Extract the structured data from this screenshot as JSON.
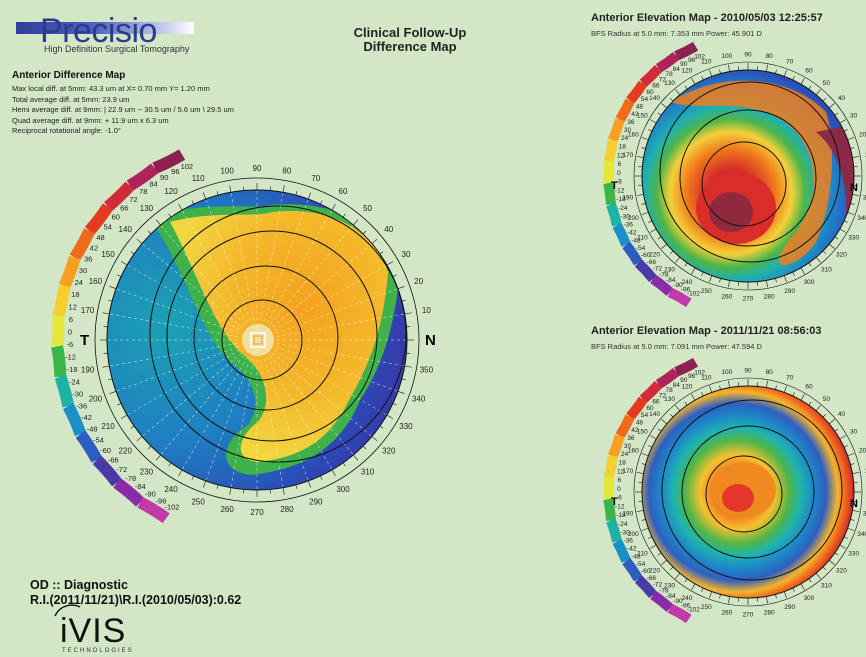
{
  "branding": {
    "product_name": "Precisio",
    "product_subtitle": "High Definition Surgical Tomography",
    "company_logo": "iVIS",
    "company_subtitle": "TECHNOLOGIES"
  },
  "report": {
    "title_line1": "Clinical Follow-Up",
    "title_line2": "Difference Map"
  },
  "difference_map": {
    "title": "Anterior Difference Map",
    "stats": [
      "Max local diff. at 5mm: 43.3 um at X= 0.70 mm Y= 1.20 mm",
      "Total average diff. at 5mm: 23.9 um",
      "Hemi average diff. at 9mm: | 22.9 um  -- 30.5 um  / 5.6 um  \\ 29.5 um",
      "Quad average diff. at 9mm: + 11.9 um  x 6.3 um",
      "Reciprocal rotational angle: -1.0°"
    ],
    "label_temporal": "T",
    "label_nasal": "N",
    "scale_labels": [
      "102",
      "96",
      "90",
      "84",
      "78",
      "72",
      "66",
      "60",
      "54",
      "48",
      "42",
      "36",
      "30",
      "24",
      "18",
      "12",
      "6",
      "0",
      "-6",
      "-12",
      "-18",
      "-24",
      "-30",
      "-36",
      "-42",
      "-48",
      "-54",
      "-60",
      "-66",
      "-72",
      "-78",
      "-84",
      "-90",
      "-96",
      "-102"
    ],
    "angle_labels": [
      "0",
      "10",
      "20",
      "30",
      "40",
      "50",
      "60",
      "70",
      "80",
      "90",
      "100",
      "110",
      "120",
      "130",
      "140",
      "150",
      "160",
      "170",
      "180",
      "190",
      "200",
      "210",
      "220",
      "230",
      "240",
      "250",
      "260",
      "270",
      "280",
      "290",
      "300",
      "310",
      "320",
      "330",
      "340",
      "350"
    ],
    "scale_colors": [
      "#8b2252",
      "#b0235a",
      "#d12a3a",
      "#e43a22",
      "#f06a1c",
      "#f5a020",
      "#f5cf2e",
      "#e5e83a",
      "#3bb54a",
      "#1cb3a6",
      "#1b8fc8",
      "#2d5dbf",
      "#4a3aa8",
      "#8a2ca8",
      "#c23aa8"
    ]
  },
  "elevation_map_1": {
    "title": "Anterior Elevation Map - 2010/05/03 12:25:57",
    "subtitle": "BFS Radius at 5.0 mm: 7.353 mm  Power: 45.901 D",
    "label_temporal": "T",
    "label_nasal": "N"
  },
  "elevation_map_2": {
    "title": "Anterior Elevation Map - 2011/11/21 08:56:03",
    "subtitle": "BFS Radius at 5.0 mm: 7.091 mm  Power: 47.594 D",
    "label_temporal": "T",
    "label_nasal": "N"
  },
  "diagnostic": {
    "line1": "OD :: Diagnostic",
    "line2": "R.I.(2011/11/21)\\R.I.(2010/05/03):0.62"
  }
}
